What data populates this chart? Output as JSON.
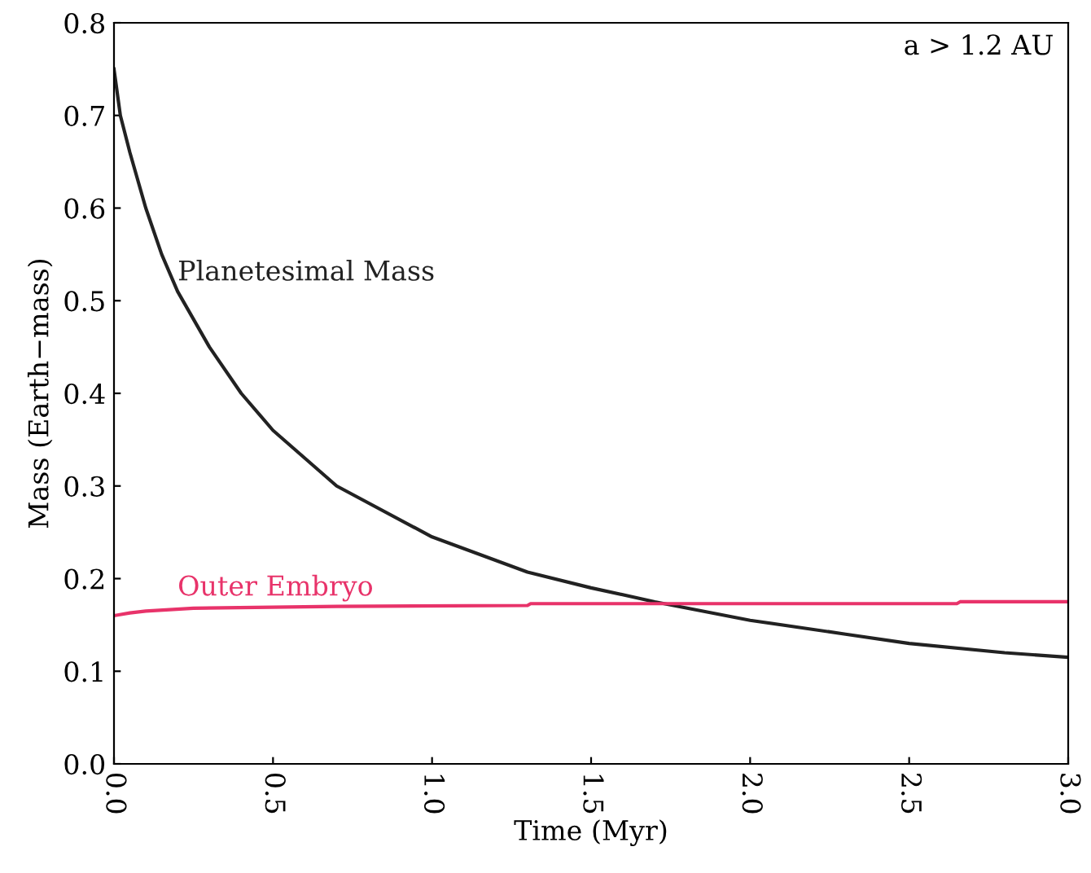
{
  "chart_data": {
    "type": "line",
    "xlabel": "Time (Myr)",
    "ylabel": "Mass (Earth−mass)",
    "xlim": [
      0,
      3
    ],
    "ylim": [
      0,
      0.8
    ],
    "xticks": [
      {
        "value": 0,
        "label": "0.0"
      },
      0.5,
      {
        "value": 1,
        "label": "1.0"
      },
      1.5,
      {
        "value": 2,
        "label": "2.0"
      },
      2.5,
      {
        "value": 3,
        "label": "3.0"
      }
    ],
    "yticks": [
      {
        "value": 0,
        "label": "0.0"
      },
      0.1,
      0.2,
      0.3,
      0.4,
      0.5,
      0.6,
      0.7,
      0.8
    ],
    "grid": false,
    "legend": false,
    "series": [
      {
        "color": "#222222",
        "x": [
          0,
          0.02,
          0.05,
          0.1,
          0.15,
          0.2,
          0.3,
          0.4,
          0.5,
          0.7,
          1.0,
          1.3,
          1.5,
          1.7,
          2.0,
          2.3,
          2.5,
          2.8,
          3.0
        ],
        "values": [
          0.75,
          0.7,
          0.66,
          0.6,
          0.55,
          0.51,
          0.45,
          0.4,
          0.36,
          0.3,
          0.245,
          0.207,
          0.19,
          0.175,
          0.155,
          0.14,
          0.13,
          0.12,
          0.115
        ]
      },
      {
        "color": "#e8336a",
        "x": [
          0,
          0.05,
          0.1,
          0.25,
          0.7,
          1.3,
          1.31,
          2.65,
          2.66,
          3.0
        ],
        "values": [
          0.16,
          0.163,
          0.165,
          0.168,
          0.17,
          0.171,
          0.173,
          0.173,
          0.175,
          0.175
        ]
      }
    ],
    "annotations": [
      {
        "text": "Planetesimal Mass",
        "x": 0.2,
        "y": 0.53
      },
      {
        "text": "Outer Embryo",
        "x": 0.2,
        "y": 0.168
      },
      "a > 1.2 AU"
    ]
  }
}
